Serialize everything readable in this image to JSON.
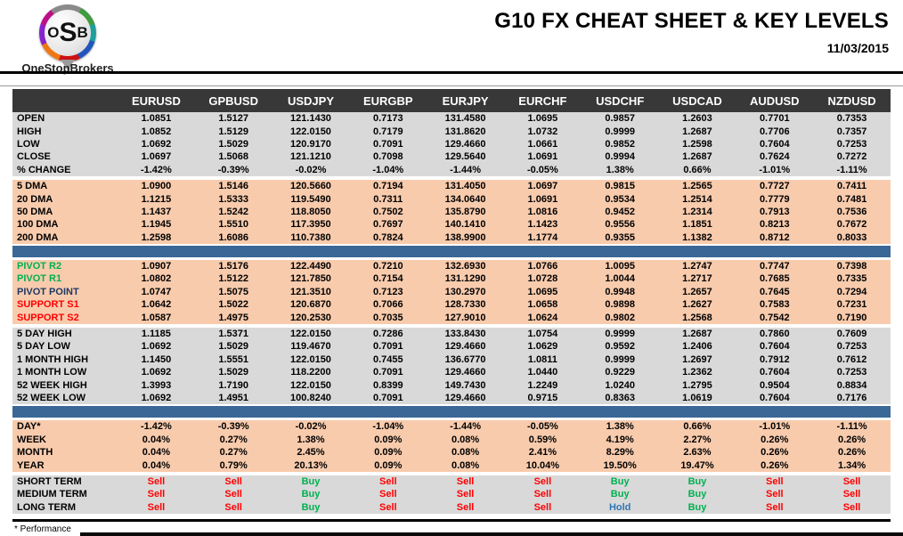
{
  "header": {
    "logo_text_o": "O",
    "logo_text_s": "S",
    "logo_text_b": "B",
    "logo_subtext": "OneStopBrokers",
    "title": "G10 FX CHEAT SHEET & KEY LEVELS",
    "date": "11/03/2015"
  },
  "footnote": "* Performance",
  "colors": {
    "header_bg": "#383838",
    "gray_row_bg": "#D9D9D9",
    "peach_row_bg": "#F8CBAD",
    "blue_bar": "#3A6796",
    "buy_green": "#00B050",
    "sell_red": "#FF0000",
    "hold_blue": "#2E75B6",
    "pivot_label_green": "#00B050",
    "pivot_label_navy": "#1F3864",
    "support_label_red": "#FF0000"
  },
  "table": {
    "columns": [
      "EURUSD",
      "GPBUSD",
      "USDJPY",
      "EURGBP",
      "EURJPY",
      "EURCHF",
      "USDCHF",
      "USDCAD",
      "AUDUSD",
      "NZDUSD"
    ],
    "sections": {
      "ohlc": {
        "type": "numeric",
        "rows": [
          {
            "label": "OPEN",
            "values": [
              "1.0851",
              "1.5127",
              "121.1430",
              "0.7173",
              "131.4580",
              "1.0695",
              "0.9857",
              "1.2603",
              "0.7701",
              "0.7353"
            ]
          },
          {
            "label": "HIGH",
            "values": [
              "1.0852",
              "1.5129",
              "122.0150",
              "0.7179",
              "131.8620",
              "1.0732",
              "0.9999",
              "1.2687",
              "0.7706",
              "0.7357"
            ]
          },
          {
            "label": "LOW",
            "values": [
              "1.0692",
              "1.5029",
              "120.9170",
              "0.7091",
              "129.4660",
              "1.0661",
              "0.9852",
              "1.2598",
              "0.7604",
              "0.7253"
            ]
          },
          {
            "label": "CLOSE",
            "values": [
              "1.0697",
              "1.5068",
              "121.1210",
              "0.7098",
              "129.5640",
              "1.0691",
              "0.9994",
              "1.2687",
              "0.7624",
              "0.7272"
            ]
          },
          {
            "label": "% CHANGE",
            "values": [
              "-1.42%",
              "-0.39%",
              "-0.02%",
              "-1.04%",
              "-1.44%",
              "-0.05%",
              "1.38%",
              "0.66%",
              "-1.01%",
              "-1.11%"
            ]
          }
        ]
      },
      "dma": {
        "type": "numeric",
        "rows": [
          {
            "label": "5 DMA",
            "values": [
              "1.0900",
              "1.5146",
              "120.5660",
              "0.7194",
              "131.4050",
              "1.0697",
              "0.9815",
              "1.2565",
              "0.7727",
              "0.7411"
            ]
          },
          {
            "label": "20 DMA",
            "values": [
              "1.1215",
              "1.5333",
              "119.5490",
              "0.7311",
              "134.0640",
              "1.0691",
              "0.9534",
              "1.2514",
              "0.7779",
              "0.7481"
            ]
          },
          {
            "label": "50 DMA",
            "values": [
              "1.1437",
              "1.5242",
              "118.8050",
              "0.7502",
              "135.8790",
              "1.0816",
              "0.9452",
              "1.2314",
              "0.7913",
              "0.7536"
            ]
          },
          {
            "label": "100 DMA",
            "values": [
              "1.1945",
              "1.5510",
              "117.3950",
              "0.7697",
              "140.1410",
              "1.1423",
              "0.9556",
              "1.1851",
              "0.8213",
              "0.7672"
            ]
          },
          {
            "label": "200 DMA",
            "values": [
              "1.2598",
              "1.6086",
              "110.7380",
              "0.7824",
              "138.9900",
              "1.1774",
              "0.9355",
              "1.1382",
              "0.8712",
              "0.8033"
            ]
          }
        ]
      },
      "pivot": {
        "type": "numeric",
        "rows": [
          {
            "label": "PIVOT R2",
            "label_color": "green",
            "values": [
              "1.0907",
              "1.5176",
              "122.4490",
              "0.7210",
              "132.6930",
              "1.0766",
              "1.0095",
              "1.2747",
              "0.7747",
              "0.7398"
            ]
          },
          {
            "label": "PIVOT R1",
            "label_color": "green",
            "values": [
              "1.0802",
              "1.5122",
              "121.7850",
              "0.7154",
              "131.1290",
              "1.0728",
              "1.0044",
              "1.2717",
              "0.7685",
              "0.7335"
            ]
          },
          {
            "label": "PIVOT POINT",
            "label_color": "navy",
            "values": [
              "1.0747",
              "1.5075",
              "121.3510",
              "0.7123",
              "130.2970",
              "1.0695",
              "0.9948",
              "1.2657",
              "0.7645",
              "0.7294"
            ]
          },
          {
            "label": "SUPPORT S1",
            "label_color": "red",
            "values": [
              "1.0642",
              "1.5022",
              "120.6870",
              "0.7066",
              "128.7330",
              "1.0658",
              "0.9898",
              "1.2627",
              "0.7583",
              "0.7231"
            ]
          },
          {
            "label": "SUPPORT S2",
            "label_color": "red",
            "values": [
              "1.0587",
              "1.4975",
              "120.2530",
              "0.7035",
              "127.9010",
              "1.0624",
              "0.9802",
              "1.2568",
              "0.7542",
              "0.7190"
            ]
          }
        ]
      },
      "ranges": {
        "type": "numeric",
        "rows": [
          {
            "label": "5 DAY HIGH",
            "values": [
              "1.1185",
              "1.5371",
              "122.0150",
              "0.7286",
              "133.8430",
              "1.0754",
              "0.9999",
              "1.2687",
              "0.7860",
              "0.7609"
            ]
          },
          {
            "label": "5 DAY LOW",
            "values": [
              "1.0692",
              "1.5029",
              "119.4670",
              "0.7091",
              "129.4660",
              "1.0629",
              "0.9592",
              "1.2406",
              "0.7604",
              "0.7253"
            ]
          },
          {
            "label": "1 MONTH HIGH",
            "values": [
              "1.1450",
              "1.5551",
              "122.0150",
              "0.7455",
              "136.6770",
              "1.0811",
              "0.9999",
              "1.2697",
              "0.7912",
              "0.7612"
            ]
          },
          {
            "label": "1 MONTH LOW",
            "values": [
              "1.0692",
              "1.5029",
              "118.2200",
              "0.7091",
              "129.4660",
              "1.0440",
              "0.9229",
              "1.2362",
              "0.7604",
              "0.7253"
            ]
          },
          {
            "label": "52 WEEK HIGH",
            "values": [
              "1.3993",
              "1.7190",
              "122.0150",
              "0.8399",
              "149.7430",
              "1.2249",
              "1.0240",
              "1.2795",
              "0.9504",
              "0.8834"
            ]
          },
          {
            "label": "52 WEEK LOW",
            "values": [
              "1.0692",
              "1.4951",
              "100.8240",
              "0.7091",
              "129.4660",
              "0.9715",
              "0.8363",
              "1.0619",
              "0.7604",
              "0.7176"
            ]
          }
        ]
      },
      "performance": {
        "type": "numeric",
        "rows": [
          {
            "label": "DAY*",
            "values": [
              "-1.42%",
              "-0.39%",
              "-0.02%",
              "-1.04%",
              "-1.44%",
              "-0.05%",
              "1.38%",
              "0.66%",
              "-1.01%",
              "-1.11%"
            ]
          },
          {
            "label": "WEEK",
            "values": [
              "0.04%",
              "0.27%",
              "1.38%",
              "0.09%",
              "0.08%",
              "0.59%",
              "4.19%",
              "2.27%",
              "0.26%",
              "0.26%"
            ]
          },
          {
            "label": "MONTH",
            "values": [
              "0.04%",
              "0.27%",
              "2.45%",
              "0.09%",
              "0.08%",
              "2.41%",
              "8.29%",
              "2.63%",
              "0.26%",
              "0.26%"
            ]
          },
          {
            "label": "YEAR",
            "values": [
              "0.04%",
              "0.79%",
              "20.13%",
              "0.09%",
              "0.08%",
              "10.04%",
              "19.50%",
              "19.47%",
              "0.26%",
              "1.34%"
            ]
          }
        ]
      },
      "signals": {
        "type": "signal",
        "rows": [
          {
            "label": "SHORT TERM",
            "values": [
              "Sell",
              "Sell",
              "Buy",
              "Sell",
              "Sell",
              "Sell",
              "Buy",
              "Buy",
              "Sell",
              "Sell"
            ]
          },
          {
            "label": "MEDIUM TERM",
            "values": [
              "Sell",
              "Sell",
              "Buy",
              "Sell",
              "Sell",
              "Sell",
              "Buy",
              "Buy",
              "Sell",
              "Sell"
            ]
          },
          {
            "label": "LONG TERM",
            "values": [
              "Sell",
              "Sell",
              "Buy",
              "Sell",
              "Sell",
              "Sell",
              "Hold",
              "Buy",
              "Sell",
              "Sell"
            ]
          }
        ]
      }
    }
  }
}
